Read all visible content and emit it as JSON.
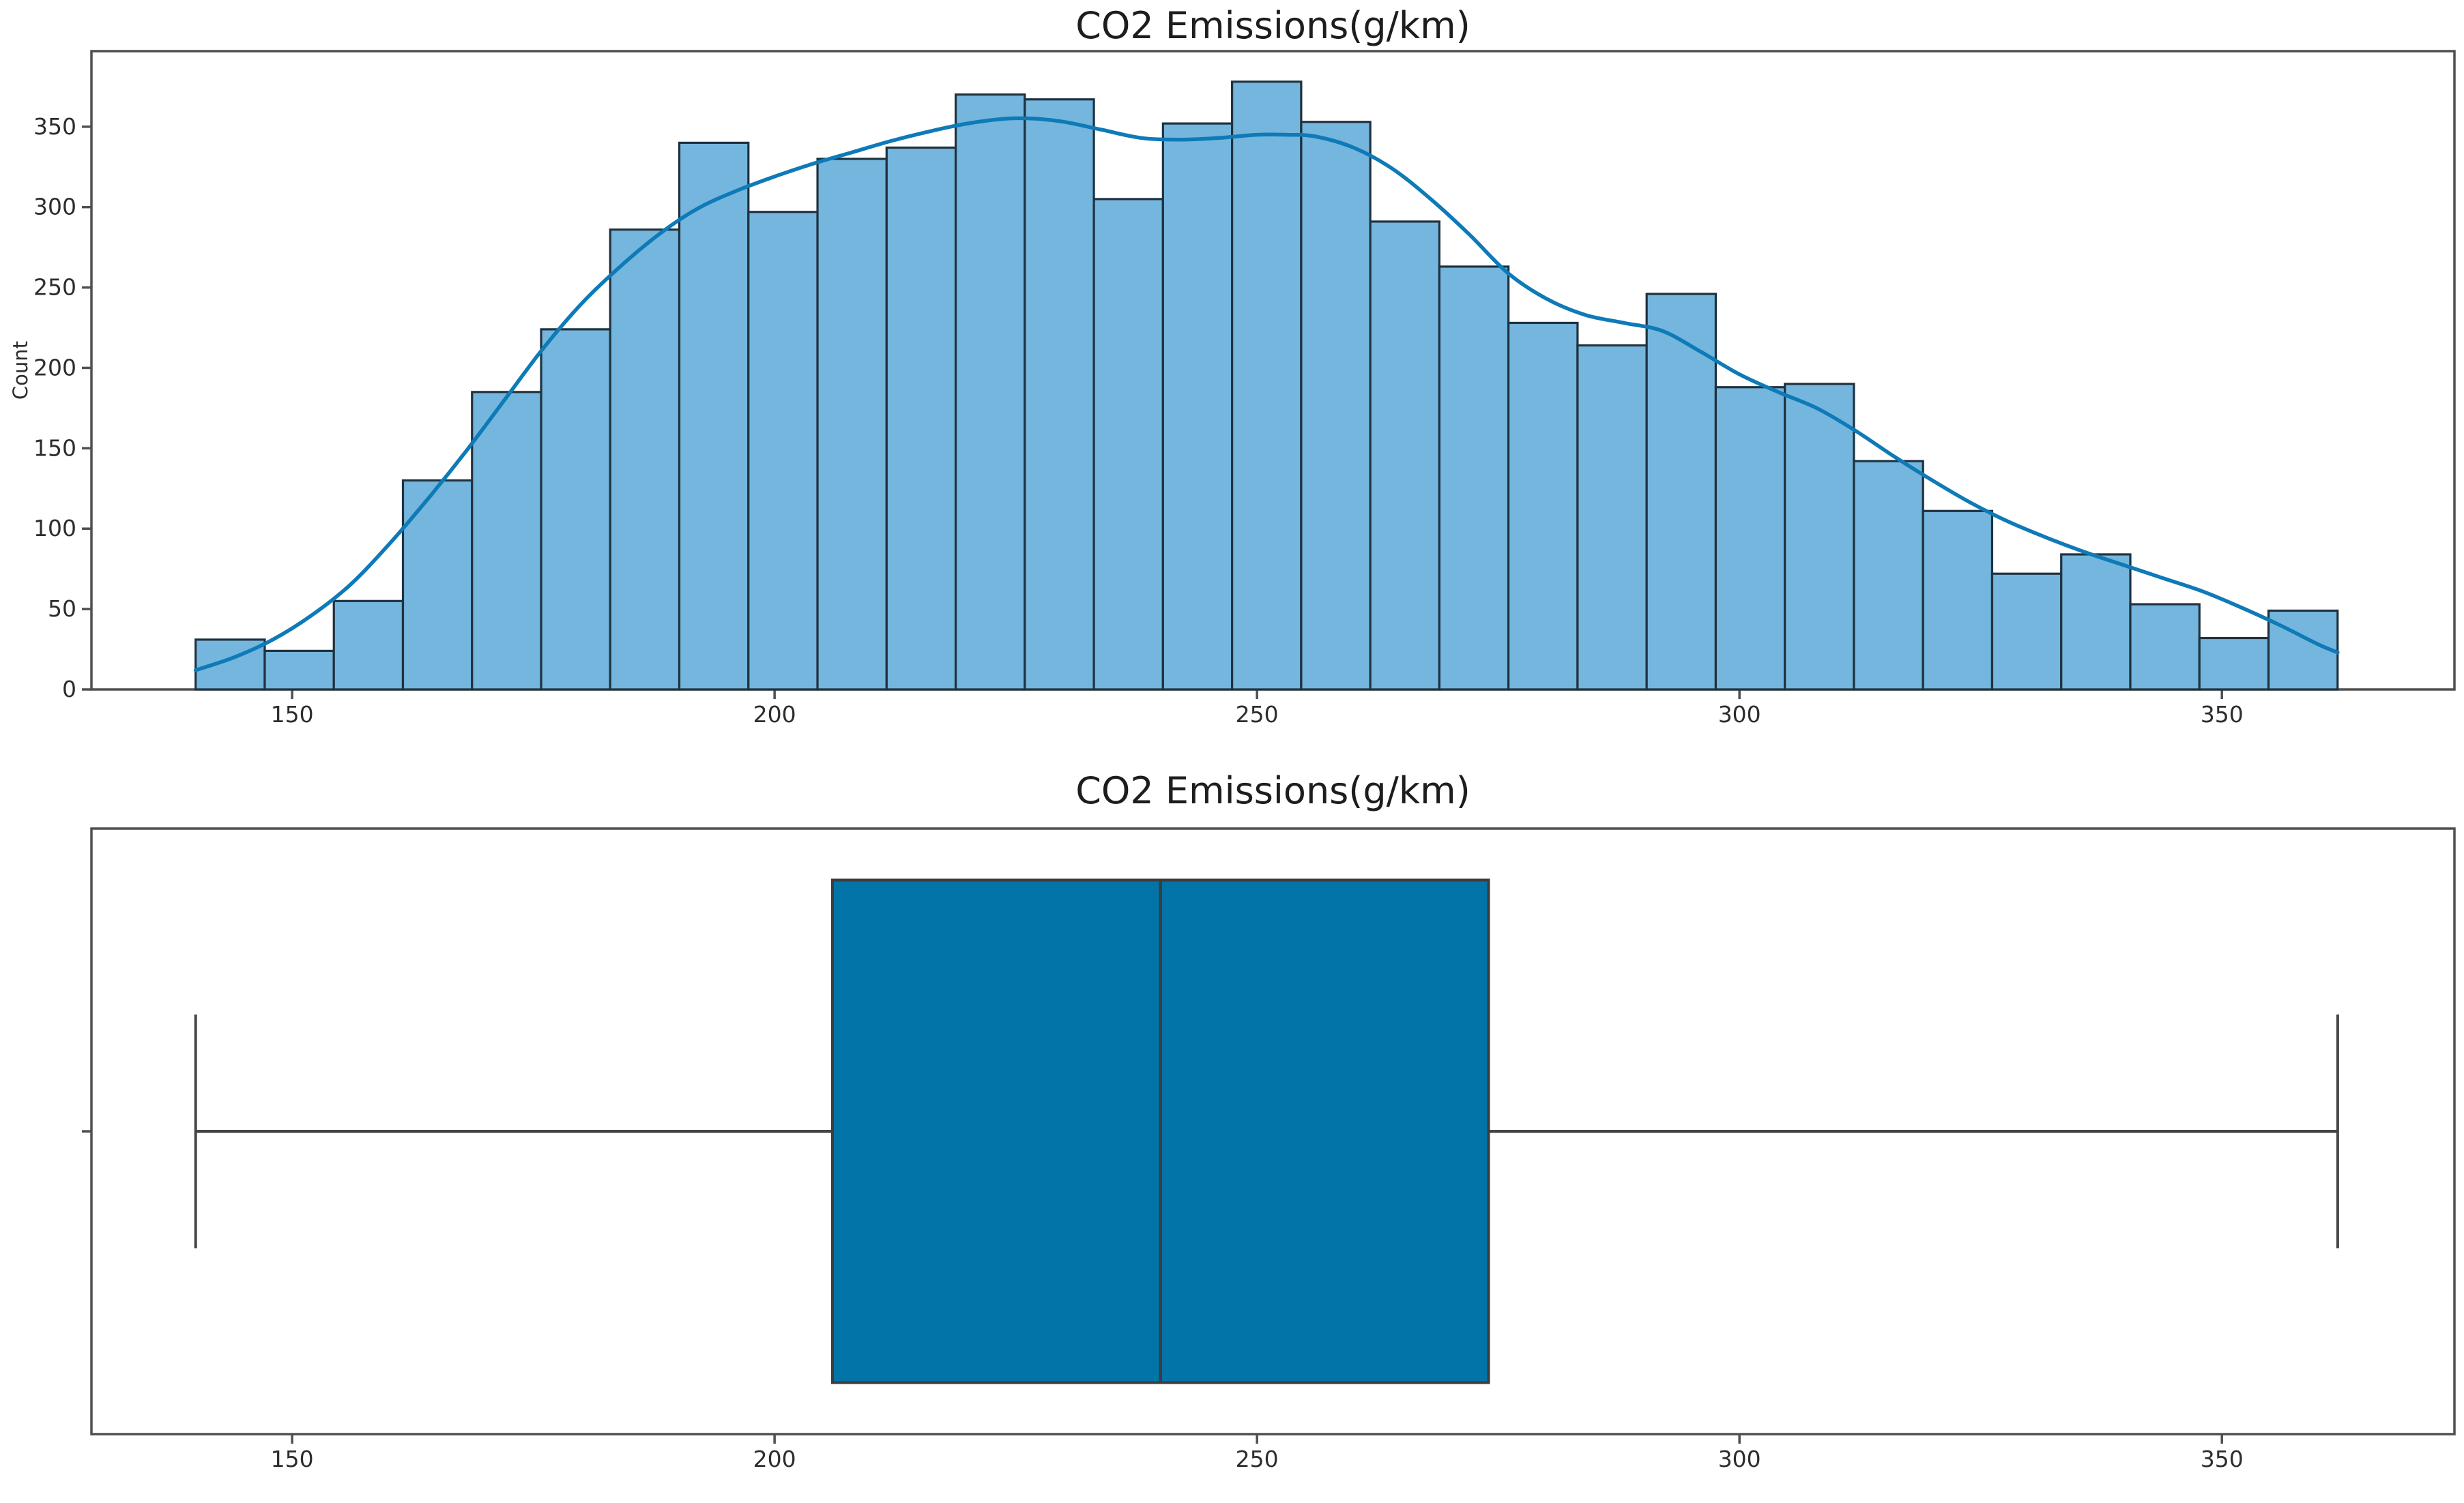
{
  "figure": {
    "background": "#ffffff"
  },
  "colors": {
    "bar_fill": "#74b6dd",
    "bar_edge": "#1f3240",
    "kde_line": "#0e7ab7",
    "box_fill": "#0274a8",
    "box_edge": "#3d3d3d",
    "whisker": "#454545",
    "spine": "#4f4f4f",
    "tick": "#4f4f4f",
    "text": "#2d2d2d"
  },
  "chart_data": [
    {
      "type": "histogram",
      "title": "CO2 Emissions(g/km)",
      "xlabel": "",
      "ylabel": "Count",
      "bin_start": 140,
      "bin_width": 7.161,
      "counts": [
        31,
        24,
        55,
        130,
        185,
        224,
        286,
        340,
        297,
        330,
        337,
        370,
        367,
        305,
        352,
        378,
        353,
        291,
        263,
        228,
        214,
        246,
        188,
        190,
        142,
        111,
        72,
        84,
        53,
        32,
        49
      ],
      "xlim": [
        129.2,
        374.1
      ],
      "ylim": [
        0,
        397
      ],
      "xticks": [
        150,
        200,
        250,
        300,
        350
      ],
      "yticks": [
        0,
        50,
        100,
        150,
        200,
        250,
        300,
        350
      ],
      "grid": false,
      "legend": "none",
      "kde": {
        "points": [
          [
            140,
            12
          ],
          [
            144,
            20
          ],
          [
            148,
            31
          ],
          [
            152,
            46
          ],
          [
            156,
            65
          ],
          [
            160,
            90
          ],
          [
            164,
            118
          ],
          [
            168,
            148
          ],
          [
            172,
            180
          ],
          [
            176,
            212
          ],
          [
            180,
            240
          ],
          [
            184,
            263
          ],
          [
            188,
            283
          ],
          [
            192,
            299
          ],
          [
            196,
            310
          ],
          [
            200,
            319
          ],
          [
            204,
            327
          ],
          [
            208,
            334
          ],
          [
            212,
            341
          ],
          [
            216,
            347
          ],
          [
            220,
            352
          ],
          [
            224,
            355
          ],
          [
            227,
            355
          ],
          [
            230,
            353
          ],
          [
            234,
            348
          ],
          [
            238,
            343
          ],
          [
            242,
            342
          ],
          [
            246,
            343
          ],
          [
            250,
            345
          ],
          [
            253,
            345
          ],
          [
            256,
            344
          ],
          [
            260,
            337
          ],
          [
            264,
            324
          ],
          [
            268,
            305
          ],
          [
            272,
            283
          ],
          [
            276,
            259
          ],
          [
            280,
            243
          ],
          [
            284,
            233
          ],
          [
            288,
            228
          ],
          [
            292,
            223
          ],
          [
            296,
            210
          ],
          [
            300,
            196
          ],
          [
            304,
            185
          ],
          [
            308,
            175
          ],
          [
            312,
            161
          ],
          [
            316,
            145
          ],
          [
            320,
            130
          ],
          [
            324,
            116
          ],
          [
            328,
            104
          ],
          [
            332,
            94
          ],
          [
            336,
            85
          ],
          [
            340,
            77
          ],
          [
            344,
            69
          ],
          [
            348,
            61
          ],
          [
            352,
            51
          ],
          [
            356,
            40
          ],
          [
            360,
            28
          ],
          [
            362,
            23
          ]
        ]
      }
    },
    {
      "type": "boxplot",
      "title": "CO2 Emissions(g/km)",
      "orientation": "horizontal",
      "stats": {
        "whisker_min": 140,
        "q1": 206,
        "median": 240,
        "q3": 274,
        "whisker_max": 362
      },
      "xlim": [
        129.2,
        374.1
      ],
      "xticks": [
        150,
        200,
        250,
        300,
        350
      ],
      "grid": false
    }
  ]
}
